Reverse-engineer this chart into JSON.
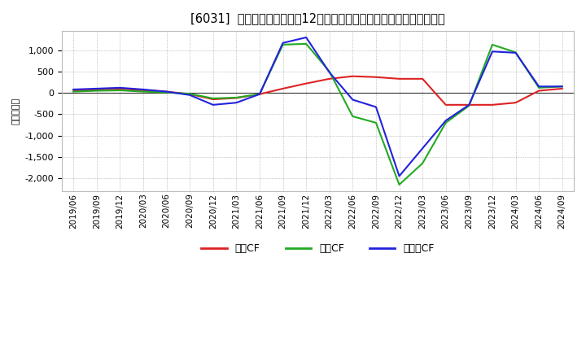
{
  "title": "[6031]  キャッシュフローの12か月移動合計の対前年同期増減額の推移",
  "ylabel": "（百万円）",
  "background_color": "#ffffff",
  "plot_bg_color": "#ffffff",
  "x_labels": [
    "2019/06",
    "2019/09",
    "2019/12",
    "2020/03",
    "2020/06",
    "2020/09",
    "2020/12",
    "2021/03",
    "2021/06",
    "2021/09",
    "2021/12",
    "2022/03",
    "2022/06",
    "2022/09",
    "2022/12",
    "2023/03",
    "2023/06",
    "2023/09",
    "2023/12",
    "2024/03",
    "2024/06",
    "2024/09"
  ],
  "operating_cf": [
    50,
    80,
    100,
    60,
    30,
    -30,
    -150,
    -120,
    -30,
    100,
    220,
    330,
    390,
    370,
    330,
    330,
    -280,
    -280,
    -280,
    -230,
    50,
    100
  ],
  "investing_cf": [
    30,
    50,
    60,
    30,
    10,
    -20,
    -130,
    -110,
    -30,
    1130,
    1150,
    500,
    -550,
    -700,
    -2150,
    -1650,
    -700,
    -300,
    1130,
    950,
    120,
    150
  ],
  "free_cf": [
    80,
    100,
    120,
    80,
    30,
    -50,
    -280,
    -230,
    -30,
    1170,
    1300,
    480,
    -160,
    -330,
    -1950,
    -1300,
    -650,
    -280,
    970,
    940,
    150,
    150
  ],
  "operating_color": "#dd2222",
  "investing_color": "#22aa22",
  "free_color": "#2222dd",
  "ylim": [
    -2300,
    1450
  ],
  "yticks": [
    -2000,
    -1500,
    -1000,
    -500,
    0,
    500,
    1000
  ],
  "legend_labels": [
    "営業CF",
    "投資CF",
    "フリーCF"
  ]
}
